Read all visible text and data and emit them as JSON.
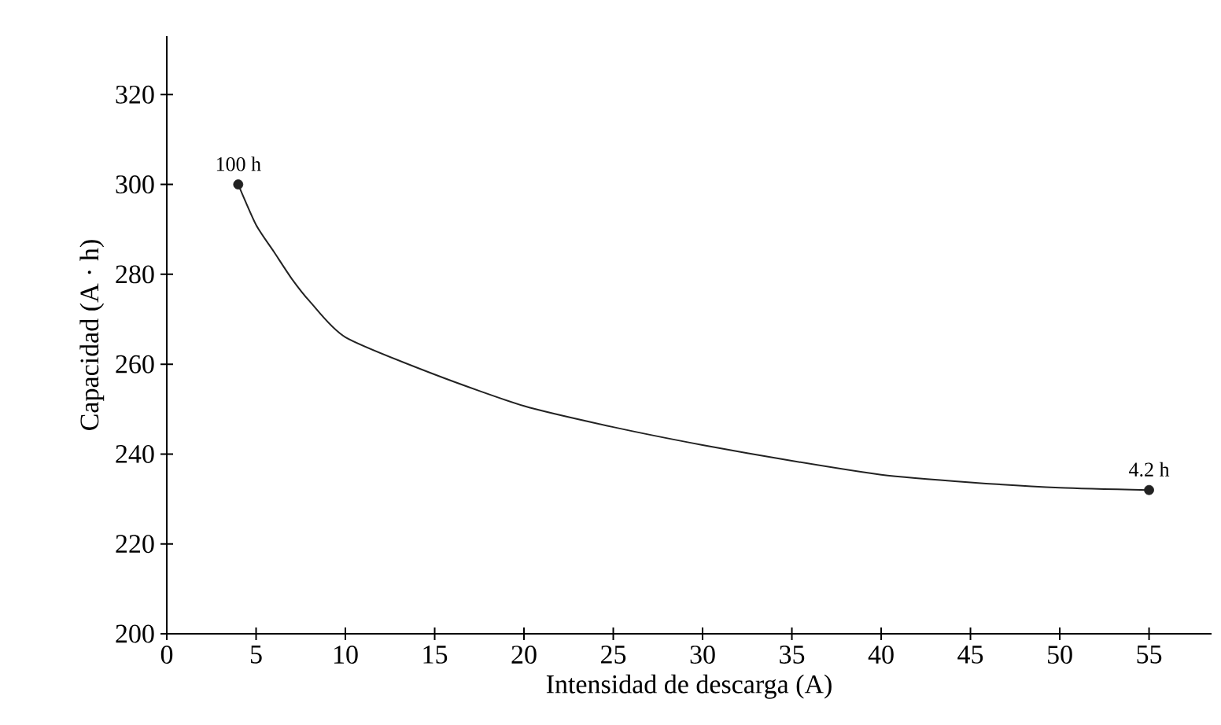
{
  "chart_data": {
    "type": "line",
    "xlabel": "Intensidad de descarga (A)",
    "ylabel": "Capacidad (A · h)",
    "xlim": [
      0,
      58.5
    ],
    "ylim": [
      200,
      333
    ],
    "xticks": [
      0,
      5,
      10,
      15,
      20,
      25,
      30,
      35,
      40,
      45,
      50,
      55
    ],
    "yticks": [
      200,
      220,
      240,
      260,
      280,
      300,
      320
    ],
    "grid": false,
    "series": [
      {
        "color": "#222222",
        "marker": "none",
        "x": [
          4,
          5,
          6,
          7,
          8,
          10,
          15,
          20,
          25,
          30,
          35,
          40,
          45,
          50,
          55
        ],
        "values": [
          300,
          291,
          285,
          279,
          274,
          266,
          257.7,
          250.7,
          246,
          242,
          238.5,
          235.4,
          233.7,
          232.5,
          232
        ]
      },
      {
        "type": "scatter",
        "color": "#222222",
        "marker": "circle",
        "x": [
          4,
          55
        ],
        "values": [
          300,
          232
        ]
      }
    ],
    "annotations": [
      {
        "text": "100 h",
        "x": 4,
        "y": 300
      },
      {
        "text": "4.2 h",
        "x": 55,
        "y": 232
      }
    ]
  }
}
